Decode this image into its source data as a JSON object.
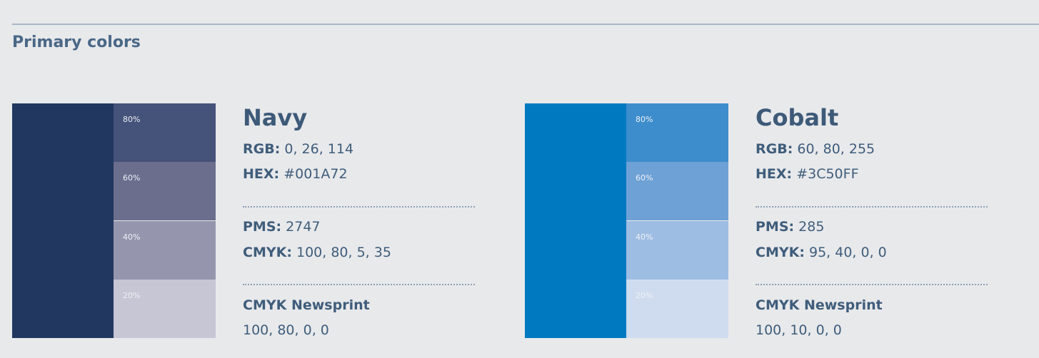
{
  "title": "Primary colors",
  "colors": [
    {
      "name": "Navy",
      "swatch": "#21375f",
      "tints": [
        {
          "label": "80%",
          "color": "#45527a"
        },
        {
          "label": "60%",
          "color": "#6b6e8d"
        },
        {
          "label": "40%",
          "color": "#9596ae"
        },
        {
          "label": "20%",
          "color": "#c6c6d4"
        }
      ],
      "rgb": {
        "label": "RGB:",
        "value": "0, 26, 114"
      },
      "hex": {
        "label": "HEX:",
        "value": "#001A72"
      },
      "pms": {
        "label": "PMS:",
        "value": "2747"
      },
      "cmyk": {
        "label": "CMYK:",
        "value": "100, 80, 5, 35"
      },
      "newsprint": {
        "label": "CMYK Newsprint",
        "value": "100, 80, 0, 0"
      }
    },
    {
      "name": "Cobalt",
      "swatch": "#0079c1",
      "tints": [
        {
          "label": "80%",
          "color": "#3d8dcc"
        },
        {
          "label": "60%",
          "color": "#6ea1d6"
        },
        {
          "label": "40%",
          "color": "#9ebde3"
        },
        {
          "label": "20%",
          "color": "#cfdcf0"
        }
      ],
      "rgb": {
        "label": "RGB:",
        "value": "60, 80, 255"
      },
      "hex": {
        "label": "HEX:",
        "value": "#3C50FF"
      },
      "pms": {
        "label": "PMS:",
        "value": "285"
      },
      "cmyk": {
        "label": "CMYK:",
        "value": "95, 40, 0, 0"
      },
      "newsprint": {
        "label": "CMYK Newsprint",
        "value": "100, 10, 0, 0"
      }
    }
  ]
}
